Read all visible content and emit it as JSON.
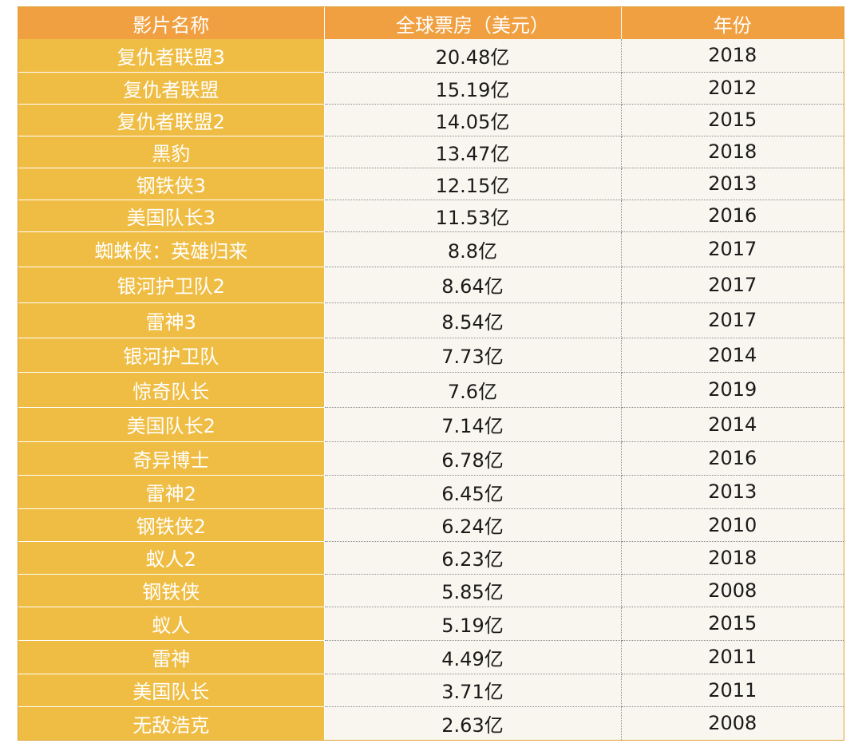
{
  "table": {
    "headers": [
      "影片名称",
      "全球票房（美元）",
      "年份"
    ],
    "rows": [
      {
        "name": "复仇者联盟3",
        "gross": "20.48亿",
        "year": "2018"
      },
      {
        "name": "复仇者联盟",
        "gross": "15.19亿",
        "year": "2012"
      },
      {
        "name": "复仇者联盟2",
        "gross": "14.05亿",
        "year": "2015"
      },
      {
        "name": "黑豹",
        "gross": "13.47亿",
        "year": "2018"
      },
      {
        "name": "钢铁侠3",
        "gross": "12.15亿",
        "year": "2013"
      },
      {
        "name": "美国队长3",
        "gross": "11.53亿",
        "year": "2016"
      },
      {
        "name": "蜘蛛侠：英雄归来",
        "gross": "8.8亿",
        "year": "2017"
      },
      {
        "name": "银河护卫队2",
        "gross": "8.64亿",
        "year": "2017"
      },
      {
        "name": "雷神3",
        "gross": "8.54亿",
        "year": "2017"
      },
      {
        "name": "银河护卫队",
        "gross": "7.73亿",
        "year": "2014"
      },
      {
        "name": "惊奇队长",
        "gross": "7.6亿",
        "year": "2019"
      },
      {
        "name": "美国队长2",
        "gross": "7.14亿",
        "year": "2014"
      },
      {
        "name": "奇异博士",
        "gross": "6.78亿",
        "year": "2016"
      },
      {
        "name": "雷神2",
        "gross": "6.45亿",
        "year": "2013"
      },
      {
        "name": "钢铁侠2",
        "gross": "6.24亿",
        "year": "2010"
      },
      {
        "name": "蚁人2",
        "gross": "6.23亿",
        "year": "2018"
      },
      {
        "name": "钢铁侠",
        "gross": "5.85亿",
        "year": "2008"
      },
      {
        "name": "蚁人",
        "gross": "5.19亿",
        "year": "2015"
      },
      {
        "name": "雷神",
        "gross": "4.49亿",
        "year": "2011"
      },
      {
        "name": "美国队长",
        "gross": "3.71亿",
        "year": "2011"
      },
      {
        "name": "无敌浩克",
        "gross": "2.63亿",
        "year": "2008"
      }
    ]
  },
  "colors": {
    "header_bg": "#f0a040",
    "name_col_bg": "#efbd43",
    "cell_bg": "#f8f6ee"
  }
}
